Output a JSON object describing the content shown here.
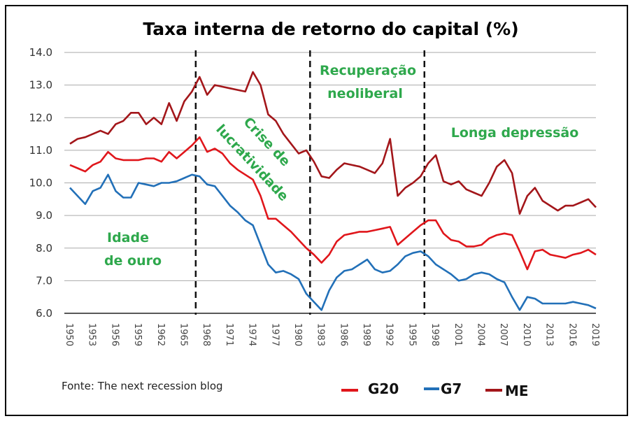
{
  "chart_data": {
    "type": "line",
    "title": "Taxa interna de retorno do capital (%)",
    "xlabel": "",
    "ylabel": "",
    "ylim": [
      6.0,
      14.0
    ],
    "xlim": [
      1950,
      2019
    ],
    "yticks": [
      "6.0",
      "7.0",
      "8.0",
      "9.0",
      "10.0",
      "11.0",
      "12.0",
      "13.0",
      "14.0"
    ],
    "xticks": [
      "1950",
      "1953",
      "1956",
      "1959",
      "1962",
      "1965",
      "1968",
      "1971",
      "1974",
      "1977",
      "1980",
      "1983",
      "1986",
      "1989",
      "1992",
      "1995",
      "1998",
      "2001",
      "2004",
      "2007",
      "2010",
      "2013",
      "2016",
      "2019"
    ],
    "grid": true,
    "legend_placement": "bottom-right",
    "x_start": 1950,
    "series": [
      {
        "name": "G20",
        "color": "#e0161b",
        "values": [
          10.55,
          10.45,
          10.35,
          10.55,
          10.65,
          10.95,
          10.75,
          10.7,
          10.7,
          10.7,
          10.75,
          10.75,
          10.65,
          10.95,
          10.75,
          10.95,
          11.15,
          11.4,
          10.95,
          11.05,
          10.9,
          10.6,
          10.4,
          10.25,
          10.1,
          9.6,
          8.9,
          8.9,
          8.7,
          8.5,
          8.25,
          8.0,
          7.8,
          7.55,
          7.8,
          8.2,
          8.4,
          8.45,
          8.5,
          8.5,
          8.55,
          8.6,
          8.65,
          8.1,
          8.3,
          8.5,
          8.7,
          8.85,
          8.85,
          8.45,
          8.25,
          8.2,
          8.05,
          8.05,
          8.1,
          8.3,
          8.4,
          8.45,
          8.4,
          7.9,
          7.35,
          7.9,
          7.95,
          7.8,
          7.75,
          7.7,
          7.8,
          7.85,
          7.95,
          7.8
        ]
      },
      {
        "name": "G7",
        "color": "#2270b8",
        "values": [
          9.85,
          9.6,
          9.35,
          9.75,
          9.85,
          10.25,
          9.75,
          9.55,
          9.55,
          10.0,
          9.95,
          9.9,
          10.0,
          10.0,
          10.05,
          10.15,
          10.25,
          10.2,
          9.95,
          9.9,
          9.6,
          9.3,
          9.1,
          8.85,
          8.7,
          8.1,
          7.5,
          7.25,
          7.3,
          7.2,
          7.05,
          6.6,
          6.35,
          6.1,
          6.7,
          7.1,
          7.3,
          7.35,
          7.5,
          7.65,
          7.35,
          7.25,
          7.3,
          7.5,
          7.75,
          7.85,
          7.9,
          7.75,
          7.5,
          7.35,
          7.2,
          7.0,
          7.05,
          7.2,
          7.25,
          7.2,
          7.05,
          6.95,
          6.5,
          6.1,
          6.5,
          6.45,
          6.3,
          6.3,
          6.3,
          6.3,
          6.35,
          6.3,
          6.25,
          6.15
        ]
      },
      {
        "name": "ME",
        "color": "#a3161a",
        "values": [
          11.2,
          11.35,
          11.4,
          11.5,
          11.6,
          11.5,
          11.8,
          11.9,
          12.15,
          12.15,
          11.8,
          12.0,
          11.8,
          12.45,
          11.9,
          12.5,
          12.8,
          13.25,
          12.7,
          13.0,
          12.95,
          12.9,
          12.85,
          12.8,
          13.4,
          13.0,
          12.1,
          11.9,
          11.5,
          11.2,
          10.9,
          11.0,
          10.65,
          10.2,
          10.15,
          10.4,
          10.6,
          10.55,
          10.5,
          10.4,
          10.3,
          10.6,
          11.35,
          9.6,
          9.85,
          10.0,
          10.2,
          10.6,
          10.85,
          10.05,
          9.95,
          10.05,
          9.8,
          9.7,
          9.6,
          10.0,
          10.5,
          10.7,
          10.3,
          9.05,
          9.6,
          9.85,
          9.45,
          9.3,
          9.15,
          9.3,
          9.3,
          9.4,
          9.5,
          9.25
        ]
      }
    ],
    "period_dividers": [
      1966.5,
      1981.5,
      1996.5
    ],
    "annotations": {
      "idade_line1": "Idade",
      "idade_line2": "de ouro",
      "crise_line1": "Crise de",
      "crise_line2": "lucratividade",
      "recup_line1": "Recuperação",
      "recup_line2": "neoliberal",
      "longa": "Longa depressão",
      "color": "#2ea84c"
    },
    "source": "Fonte: The next recession blog"
  }
}
